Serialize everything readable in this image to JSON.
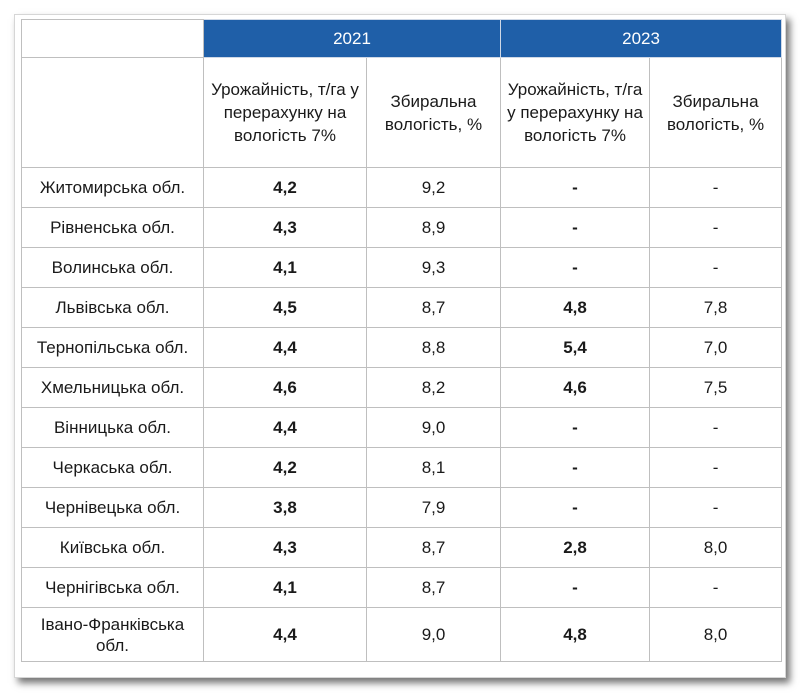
{
  "headers": {
    "year_2021": "2021",
    "year_2023": "2023",
    "yield_2021": "Урожайність, т/га у перерахунку на вологість 7%",
    "moisture_2021": "Збиральна вологість, %",
    "yield_2023": "Урожайність, т/га у перерахунку на вологість 7%",
    "moisture_2023": "Збиральна вологість, %"
  },
  "rows": [
    {
      "region": "Житомирська обл.",
      "y2021": "4,2",
      "m2021": "9,2",
      "y2023": "-",
      "m2023": "-"
    },
    {
      "region": "Рівненська обл.",
      "y2021": "4,3",
      "m2021": "8,9",
      "y2023": "-",
      "m2023": "-"
    },
    {
      "region": "Волинська обл.",
      "y2021": "4,1",
      "m2021": "9,3",
      "y2023": "-",
      "m2023": "-"
    },
    {
      "region": "Львівська обл.",
      "y2021": "4,5",
      "m2021": "8,7",
      "y2023": "4,8",
      "m2023": "7,8"
    },
    {
      "region": "Тернопільська обл.",
      "y2021": "4,4",
      "m2021": "8,8",
      "y2023": "5,4",
      "m2023": "7,0"
    },
    {
      "region": "Хмельницька обл.",
      "y2021": "4,6",
      "m2021": "8,2",
      "y2023": "4,6",
      "m2023": "7,5"
    },
    {
      "region": "Вінницька обл.",
      "y2021": "4,4",
      "m2021": "9,0",
      "y2023": "-",
      "m2023": "-"
    },
    {
      "region": "Черкаська обл.",
      "y2021": "4,2",
      "m2021": "8,1",
      "y2023": "-",
      "m2023": "-"
    },
    {
      "region": "Чернівецька обл.",
      "y2021": "3,8",
      "m2021": "7,9",
      "y2023": "-",
      "m2023": "-"
    },
    {
      "region": "Київська обл.",
      "y2021": "4,3",
      "m2021": "8,7",
      "y2023": "2,8",
      "m2023": "8,0"
    },
    {
      "region": "Чернігівська обл.",
      "y2021": "4,1",
      "m2021": "8,7",
      "y2023": "-",
      "m2023": "-"
    },
    {
      "region": "Івано-Франківська обл.",
      "y2021": "4,4",
      "m2021": "9,0",
      "y2023": "4,8",
      "m2023": "8,0"
    }
  ],
  "colors": {
    "header_bg": "#1f5fa8",
    "header_text": "#ffffff"
  }
}
